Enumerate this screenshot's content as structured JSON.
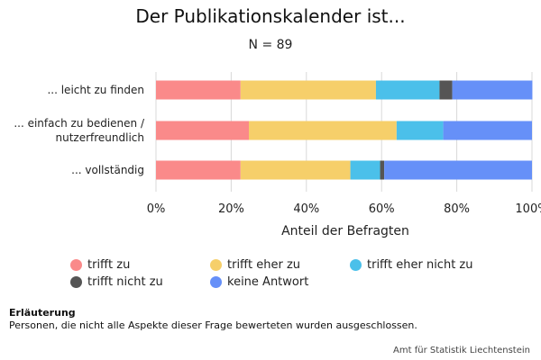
{
  "chart_data": {
    "type": "bar",
    "orientation": "horizontal",
    "stacked": true,
    "title": "Der Publikationskalender ist...",
    "subtitle": "N = 89",
    "xlabel": "Anteil der Befragten",
    "ylabel": "",
    "xlim": [
      0,
      100
    ],
    "x_ticks": [
      "0%",
      "20%",
      "40%",
      "60%",
      "80%",
      "100%"
    ],
    "grid": "vertical",
    "legend_position": "bottom",
    "categories": [
      [
        "... leicht zu finden"
      ],
      [
        "... einfach zu bedienen /",
        "nutzerfreundlich"
      ],
      [
        "... vollständig"
      ]
    ],
    "series": [
      {
        "name": "trifft zu",
        "color": "#fa8a8a",
        "values": [
          22.5,
          24.7,
          22.5
        ]
      },
      {
        "name": "trifft eher zu",
        "color": "#f6cf6a",
        "values": [
          36.0,
          39.3,
          29.2
        ]
      },
      {
        "name": "trifft eher nicht zu",
        "color": "#4bc0ea",
        "values": [
          16.9,
          12.4,
          7.9
        ]
      },
      {
        "name": "trifft nicht zu",
        "color": "#555555",
        "values": [
          3.4,
          0.0,
          1.1
        ]
      },
      {
        "name": "keine Antwort",
        "color": "#6690f8",
        "values": [
          21.3,
          23.6,
          39.3
        ]
      }
    ]
  },
  "note": {
    "title": "Erläuterung",
    "text": "Personen, die nicht alle Aspekte dieser Frage bewerteten wurden ausgeschlossen."
  },
  "source": "Amt für Statistik Liechtenstein"
}
